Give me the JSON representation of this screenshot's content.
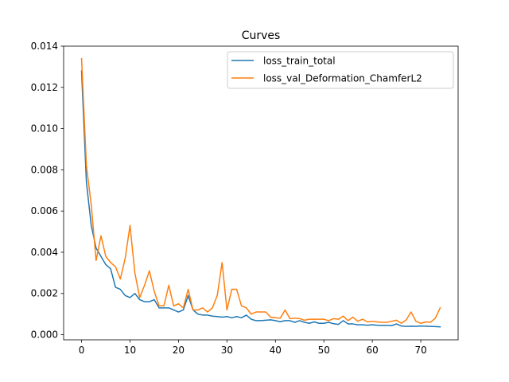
{
  "chart_data": {
    "type": "line",
    "title": "Curves",
    "xlabel": "",
    "ylabel": "",
    "xlim": [
      -3.7,
      77.7
    ],
    "ylim": [
      -0.00025,
      0.014
    ],
    "xticks": [
      0,
      10,
      20,
      30,
      40,
      50,
      60,
      70
    ],
    "yticks": [
      0.0,
      0.002,
      0.004,
      0.006,
      0.008,
      0.01,
      0.012,
      0.014
    ],
    "ytick_labels": [
      "0.000",
      "0.002",
      "0.004",
      "0.006",
      "0.008",
      "0.010",
      "0.012",
      "0.014"
    ],
    "grid": false,
    "legend_position": "upper right",
    "x": [
      0,
      1,
      2,
      3,
      4,
      5,
      6,
      7,
      8,
      9,
      10,
      11,
      12,
      13,
      14,
      15,
      16,
      17,
      18,
      19,
      20,
      21,
      22,
      23,
      24,
      25,
      26,
      27,
      28,
      29,
      30,
      31,
      32,
      33,
      34,
      35,
      36,
      37,
      38,
      39,
      40,
      41,
      42,
      43,
      44,
      45,
      46,
      47,
      48,
      49,
      50,
      51,
      52,
      53,
      54,
      55,
      56,
      57,
      58,
      59,
      60,
      61,
      62,
      63,
      64,
      65,
      66,
      67,
      68,
      69,
      70,
      71,
      72,
      73,
      74
    ],
    "series": [
      {
        "name": "loss_train_total",
        "color": "#1f77b4",
        "values": [
          0.0128,
          0.0074,
          0.0053,
          0.0042,
          0.0038,
          0.0034,
          0.0032,
          0.0023,
          0.0022,
          0.0019,
          0.0018,
          0.002,
          0.0017,
          0.0016,
          0.0016,
          0.0017,
          0.0013,
          0.0013,
          0.0013,
          0.0012,
          0.0011,
          0.0012,
          0.0019,
          0.0012,
          0.001,
          0.00095,
          0.00095,
          0.0009,
          0.00088,
          0.00085,
          0.00088,
          0.00082,
          0.00088,
          0.00082,
          0.00095,
          0.00075,
          0.00068,
          0.00068,
          0.0007,
          0.00072,
          0.00068,
          0.00063,
          0.00068,
          0.00068,
          0.0006,
          0.00068,
          0.0006,
          0.00055,
          0.00062,
          0.00055,
          0.00055,
          0.0006,
          0.00053,
          0.0005,
          0.00068,
          0.00052,
          0.00052,
          0.00048,
          0.00048,
          0.00046,
          0.00048,
          0.00046,
          0.00045,
          0.00045,
          0.00044,
          0.00052,
          0.00042,
          0.0004,
          0.00041,
          0.0004,
          0.00042,
          0.00041,
          0.0004,
          0.00039,
          0.00038
        ]
      },
      {
        "name": "loss_val_Deformation_ChamferL2",
        "color": "#ff7f0e",
        "values": [
          0.0134,
          0.0082,
          0.0063,
          0.0036,
          0.0048,
          0.0038,
          0.0035,
          0.0033,
          0.0027,
          0.0037,
          0.0053,
          0.003,
          0.0018,
          0.0024,
          0.0031,
          0.0021,
          0.0014,
          0.0014,
          0.0024,
          0.0014,
          0.0015,
          0.0013,
          0.0022,
          0.0012,
          0.0012,
          0.0013,
          0.0011,
          0.0013,
          0.0019,
          0.0035,
          0.0012,
          0.0022,
          0.0022,
          0.0014,
          0.0013,
          0.001,
          0.0011,
          0.0011,
          0.0011,
          0.00085,
          0.00082,
          0.0008,
          0.0012,
          0.00078,
          0.0008,
          0.00078,
          0.0007,
          0.00075,
          0.00075,
          0.00075,
          0.00075,
          0.00068,
          0.00078,
          0.00075,
          0.0009,
          0.00068,
          0.00085,
          0.00065,
          0.00075,
          0.00062,
          0.00065,
          0.00062,
          0.0006,
          0.0006,
          0.00065,
          0.0007,
          0.00055,
          0.00072,
          0.0011,
          0.00065,
          0.00055,
          0.00062,
          0.0006,
          0.0008,
          0.0013
        ]
      }
    ]
  }
}
